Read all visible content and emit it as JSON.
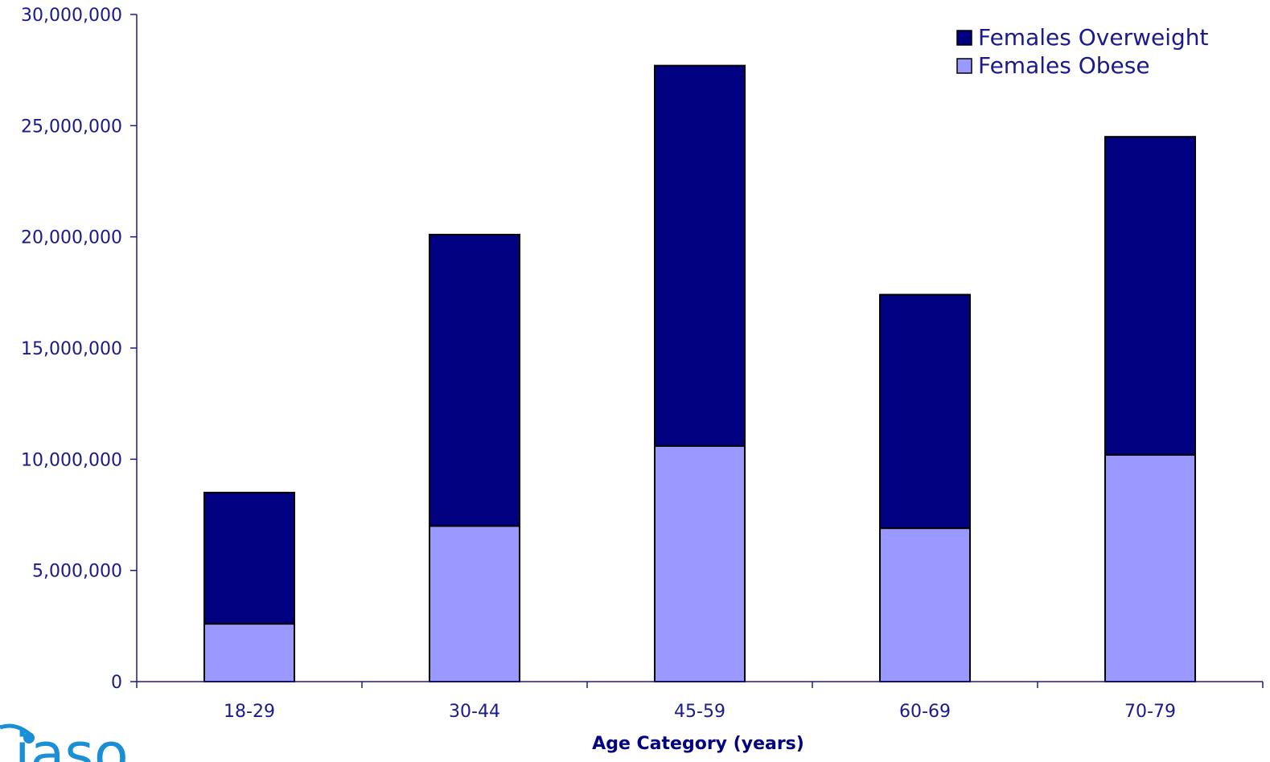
{
  "chart_data": {
    "type": "bar",
    "stacked": true,
    "categories": [
      "18-29",
      "30-44",
      "45-59",
      "60-69",
      "70-79"
    ],
    "series": [
      {
        "name": "Females Obese",
        "values": [
          2600000,
          7000000,
          10600000,
          6900000,
          10200000
        ],
        "color": "#9999ff"
      },
      {
        "name": "Females Overweight",
        "values": [
          5900000,
          13100000,
          17100000,
          10500000,
          14300000
        ],
        "color": "#000080"
      }
    ],
    "xlabel": "Age Category (years)",
    "ylim": [
      0,
      30000000
    ],
    "yticks": [
      0,
      5000000,
      10000000,
      15000000,
      20000000,
      25000000,
      30000000
    ],
    "ytick_labels": [
      "0",
      "5,000,000",
      "10,000,000",
      "15,000,000",
      "20,000,000",
      "25,000,000",
      "30,000,000"
    ],
    "legend": {
      "placement": "top-right",
      "entries": [
        "Females Overweight",
        "Females Obese"
      ]
    },
    "grid": false
  },
  "logo": {
    "text": "iaso",
    "color": "#1a8fd6"
  }
}
